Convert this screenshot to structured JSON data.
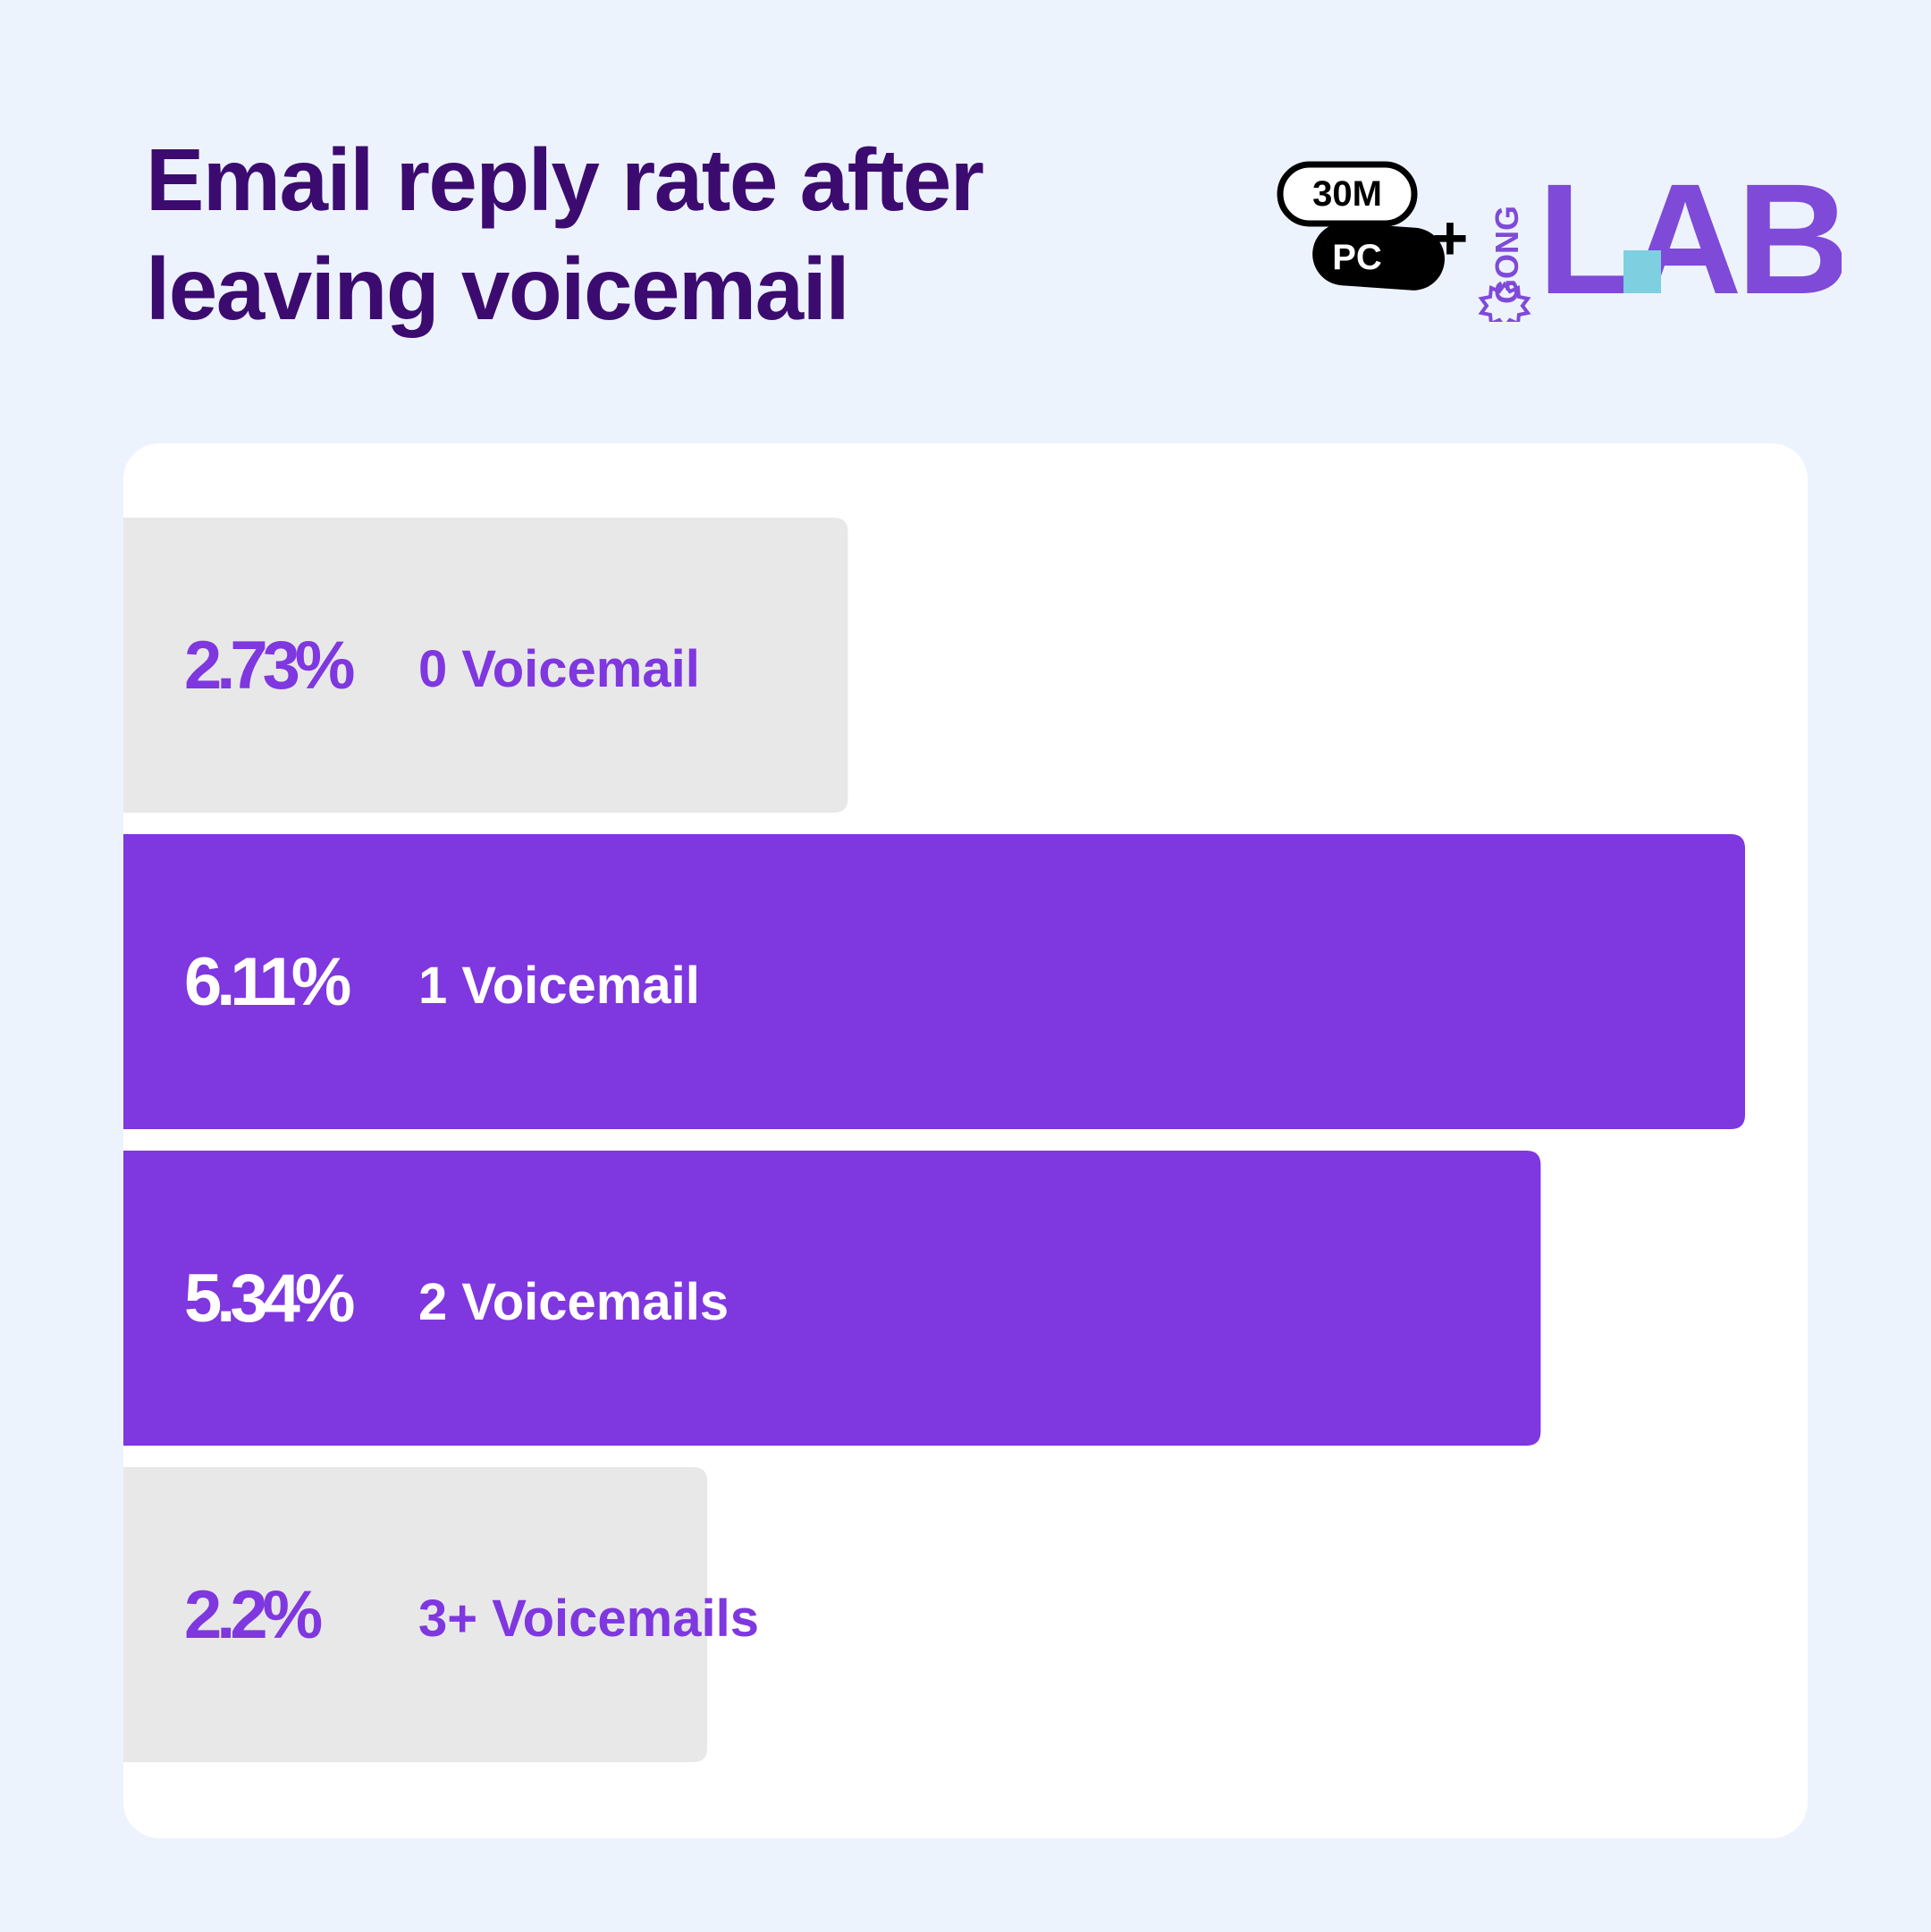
{
  "title": "Email reply rate after leaving voicemail",
  "logo": {
    "badge_top": "30M",
    "badge_bottom": "PC",
    "plus": "+",
    "gong": "GONG",
    "labs": "LABS",
    "accent": "#7f4ad8"
  },
  "colors": {
    "highlight_bar": "#7f37df",
    "muted_bar": "#e8e8e8",
    "highlight_text": "#ffffff",
    "muted_text": "#7f37df",
    "title": "#3c0b70"
  },
  "chart_data": {
    "type": "bar",
    "orientation": "horizontal",
    "title": "Email reply rate after leaving voicemail",
    "categories": [
      "0 Voicemail",
      "1 Voicemail",
      "2 Voicemails",
      "3+ Voicemails"
    ],
    "values": [
      2.73,
      6.11,
      5.34,
      2.2
    ],
    "value_labels": [
      "2.73%",
      "6.11%",
      "5.34%",
      "2.2%"
    ],
    "highlighted": [
      false,
      true,
      true,
      false
    ],
    "xlim": [
      0,
      6.11
    ],
    "grid": false,
    "legend": "none"
  }
}
